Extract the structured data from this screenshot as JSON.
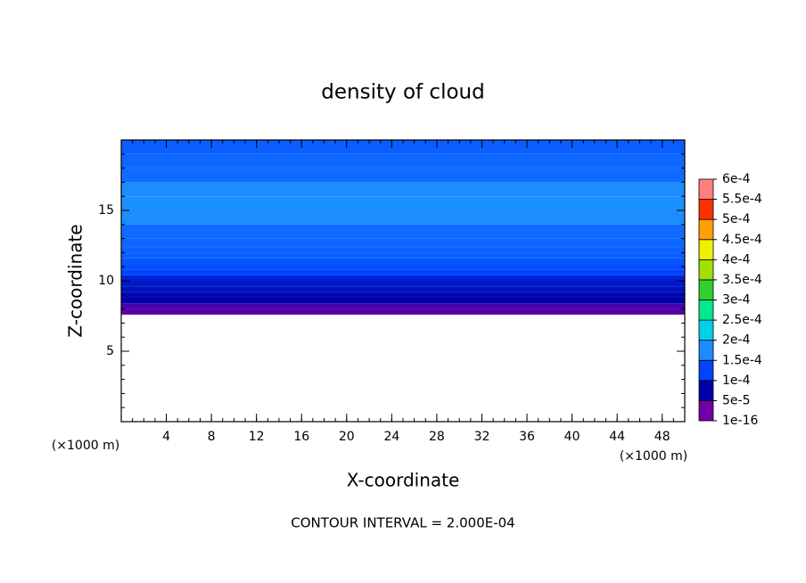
{
  "chart_data": {
    "type": "contour",
    "title": "density of cloud",
    "xlabel": "X-coordinate",
    "ylabel": "Z-coordinate",
    "x_unit_label": "(×1000 m)",
    "y_unit_label": "(×1000 m)",
    "footer": "CONTOUR INTERVAL = 2.000E-04",
    "xlim": [
      0,
      50
    ],
    "ylim": [
      0,
      20
    ],
    "xticks": [
      4,
      8,
      12,
      16,
      20,
      24,
      28,
      32,
      36,
      40,
      44,
      48
    ],
    "yticks": [
      5,
      10,
      15
    ],
    "minor_tick_step": 1,
    "z": [
      7.6,
      8.0,
      8.4,
      8.8,
      9.2,
      9.6,
      10.0,
      10.4,
      10.8,
      11.2,
      11.6,
      12.0,
      12.4,
      13.0,
      14.0,
      15.0,
      16.0,
      17.0,
      18.0,
      19.0,
      20.0
    ],
    "values": [
      2e-05,
      3e-05,
      5e-05,
      6e-05,
      7e-05,
      8e-05,
      9e-05,
      0.0001,
      0.00011,
      0.00012,
      0.00013,
      0.000135,
      0.00014,
      0.000145,
      0.00015,
      0.000155,
      0.00015,
      0.000145,
      0.00014,
      0.00013,
      0.00013
    ],
    "colorbar": {
      "ticks": [
        {
          "value": 1e-16,
          "label": "1e-16"
        },
        {
          "value": 5e-05,
          "label": "5e-5"
        },
        {
          "value": 0.0001,
          "label": "1e-4"
        },
        {
          "value": 0.00015,
          "label": "1.5e-4"
        },
        {
          "value": 0.0002,
          "label": "2e-4"
        },
        {
          "value": 0.00025,
          "label": "2.5e-4"
        },
        {
          "value": 0.0003,
          "label": "3e-4"
        },
        {
          "value": 0.00035,
          "label": "3.5e-4"
        },
        {
          "value": 0.0004,
          "label": "4e-4"
        },
        {
          "value": 0.00045,
          "label": "4.5e-4"
        },
        {
          "value": 0.0005,
          "label": "5e-4"
        },
        {
          "value": 0.00055,
          "label": "5.5e-4"
        },
        {
          "value": 0.0006,
          "label": "6e-4"
        }
      ],
      "colors": [
        "#7000a8",
        "#0000a8",
        "#0044ff",
        "#1c8cff",
        "#00d0e8",
        "#00e890",
        "#30d030",
        "#a0e000",
        "#f0f000",
        "#ffa000",
        "#ff3000",
        "#ff8080"
      ]
    }
  }
}
